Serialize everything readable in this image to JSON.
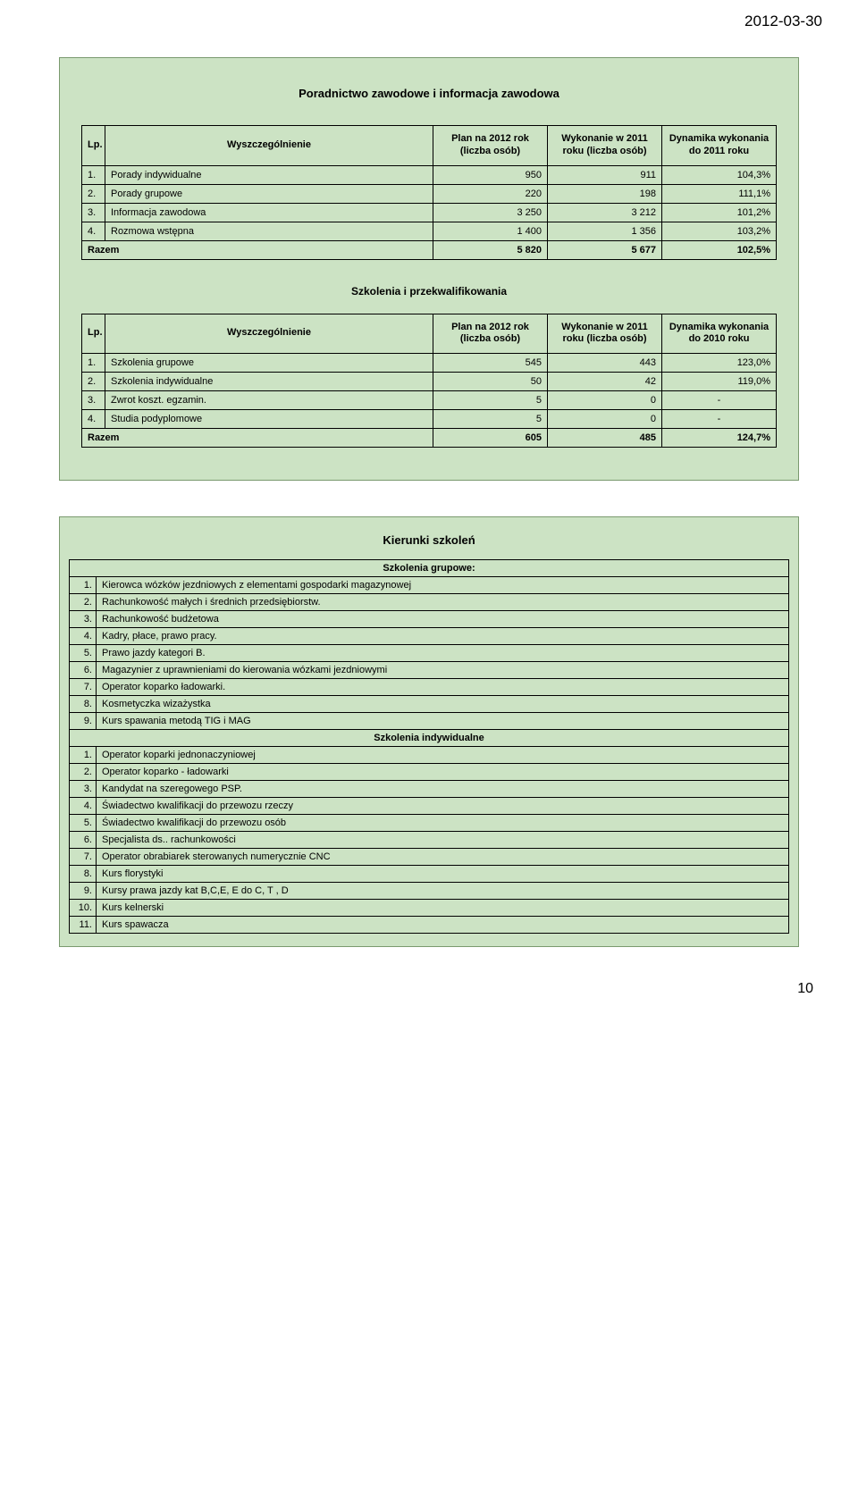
{
  "date_top": "2012-03-30",
  "page_num": "10",
  "card1": {
    "title": "Poradnictwo zawodowe i informacja zawodowa",
    "headers": {
      "lp": "Lp.",
      "name": "Wyszczególnienie",
      "plan": "Plan na 2012 rok (liczba osób)",
      "exec": "Wykonanie w 2011 roku (liczba osób)",
      "dyn": "Dynamika wykonania do 2011 roku"
    },
    "rows": [
      {
        "lp": "1.",
        "name": "Porady indywidualne",
        "c1": "950",
        "c2": "911",
        "c3": "104,3%"
      },
      {
        "lp": "2.",
        "name": "Porady grupowe",
        "c1": "220",
        "c2": "198",
        "c3": "111,1%"
      },
      {
        "lp": "3.",
        "name": "Informacja zawodowa",
        "c1": "3 250",
        "c2": "3 212",
        "c3": "101,2%"
      },
      {
        "lp": "4.",
        "name": "Rozmowa wstępna",
        "c1": "1 400",
        "c2": "1 356",
        "c3": "103,2%"
      }
    ],
    "total": {
      "label": "Razem",
      "c1": "5 820",
      "c2": "5 677",
      "c3": "102,5%"
    },
    "subtitle": "Szkolenia i przekwalifikowania",
    "headers2": {
      "lp": "Lp.",
      "name": "Wyszczególnienie",
      "plan": "Plan na 2012 rok (liczba osób)",
      "exec": "Wykonanie w 2011 roku (liczba osób)",
      "dyn": "Dynamika wykonania do 2010 roku"
    },
    "rows2": [
      {
        "lp": "1.",
        "name": "Szkolenia grupowe",
        "c1": "545",
        "c2": "443",
        "c3": "123,0%"
      },
      {
        "lp": "2.",
        "name": "Szkolenia indywidualne",
        "c1": "50",
        "c2": "42",
        "c3": "119,0%"
      },
      {
        "lp": "3.",
        "name": "Zwrot koszt. egzamin.",
        "c1": "5",
        "c2": "0",
        "c3": "-"
      },
      {
        "lp": "4.",
        "name": "Studia podyplomowe",
        "c1": "5",
        "c2": "0",
        "c3": "-"
      }
    ],
    "total2": {
      "label": "Razem",
      "c1": "605",
      "c2": "485",
      "c3": "124,7%"
    }
  },
  "card2": {
    "title": "Kierunki szkoleń",
    "group1_title": "Szkolenia grupowe:",
    "group1": [
      {
        "lp": "1.",
        "name": "Kierowca wózków jezdniowych z elementami gospodarki magazynowej"
      },
      {
        "lp": "2.",
        "name": "Rachunkowość małych i średnich przedsiębiorstw."
      },
      {
        "lp": "3.",
        "name": "Rachunkowość budżetowa"
      },
      {
        "lp": "4.",
        "name": "Kadry, płace, prawo pracy."
      },
      {
        "lp": "5.",
        "name": "Prawo jazdy kategori B."
      },
      {
        "lp": "6.",
        "name": "Magazynier z uprawnieniami do kierowania wózkami jezdniowymi"
      },
      {
        "lp": "7.",
        "name": "Operator koparko ładowarki."
      },
      {
        "lp": "8.",
        "name": "Kosmetyczka wizażystka"
      },
      {
        "lp": "9.",
        "name": "Kurs spawania metodą TIG i MAG"
      }
    ],
    "group2_title": "Szkolenia indywidualne",
    "group2": [
      {
        "lp": "1.",
        "name": "Operator koparki jednonaczyniowej"
      },
      {
        "lp": "2.",
        "name": "Operator koparko - ładowarki"
      },
      {
        "lp": "3.",
        "name": "Kandydat na szeregowego PSP."
      },
      {
        "lp": "4.",
        "name": "Świadectwo kwalifikacji do przewozu rzeczy"
      },
      {
        "lp": "5.",
        "name": "Świadectwo kwalifikacji do przewozu osób"
      },
      {
        "lp": "6.",
        "name": "Specjalista ds.. rachunkowości"
      },
      {
        "lp": "7.",
        "name": "Operator obrabiarek sterowanych numerycznie CNC"
      },
      {
        "lp": "8.",
        "name": "Kurs florystyki"
      },
      {
        "lp": "9.",
        "name": "Kursy prawa jazdy kat B,C,E, E do C, T , D"
      },
      {
        "lp": "10.",
        "name": "Kurs kelnerski"
      },
      {
        "lp": "11.",
        "name": "Kurs spawacza"
      }
    ]
  },
  "colors": {
    "card_bg": "#cce3c4",
    "card_border": "#7a9a6f",
    "cell_border": "#000000"
  }
}
